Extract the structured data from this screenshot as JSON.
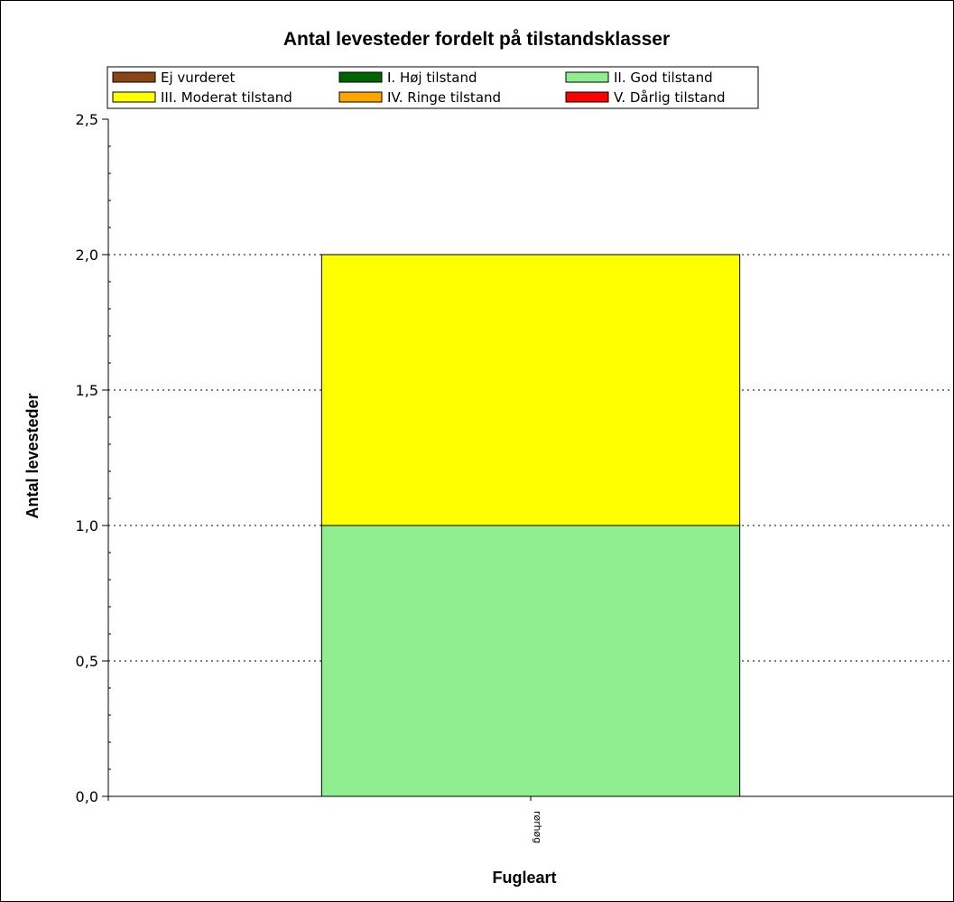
{
  "chart_data": {
    "type": "bar",
    "stacked": true,
    "title": "Antal levesteder fordelt på tilstandsklasser",
    "xlabel": "Fugleart",
    "ylabel": "Antal levesteder",
    "ylim": [
      0,
      2.5
    ],
    "yticks": [
      "0,0",
      "0,5",
      "1,0",
      "1,5",
      "2,0",
      "2,5"
    ],
    "grid": true,
    "legend_placement": "top",
    "categories": [
      "rørhøg"
    ],
    "series": [
      {
        "name": "Ej vurderet",
        "color": "#8b4513",
        "values": [
          0
        ]
      },
      {
        "name": "I. Høj tilstand",
        "color": "#006400",
        "values": [
          0
        ]
      },
      {
        "name": "II. God tilstand",
        "color": "#90ee90",
        "values": [
          1
        ]
      },
      {
        "name": "III. Moderat tilstand",
        "color": "#ffff00",
        "values": [
          1
        ]
      },
      {
        "name": "IV. Ringe tilstand",
        "color": "#ffa500",
        "values": [
          0
        ]
      },
      {
        "name": "V. Dårlig tilstand",
        "color": "#ff0000",
        "values": [
          0
        ]
      }
    ]
  }
}
